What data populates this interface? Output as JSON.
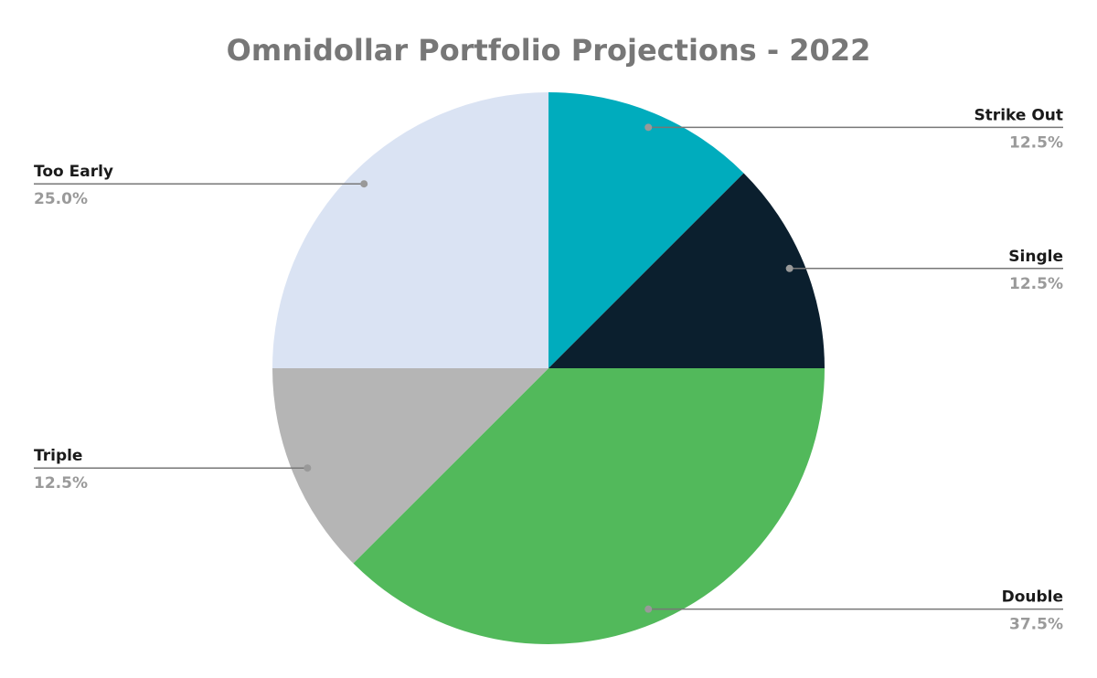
{
  "chart_data": {
    "type": "pie",
    "title": "Omnidollar Portfolio Projections - 2022",
    "categories": [
      "Strike Out",
      "Single",
      "Double",
      "Triple",
      "Too Early"
    ],
    "values": [
      12.5,
      12.5,
      37.5,
      12.5,
      25.0
    ],
    "value_labels": [
      "12.5%",
      "12.5%",
      "37.5%",
      "12.5%",
      "25.0%"
    ],
    "colors": [
      "#00acbd",
      "#0b1f2e",
      "#52b95b",
      "#b5b5b5",
      "#dae3f3"
    ]
  }
}
